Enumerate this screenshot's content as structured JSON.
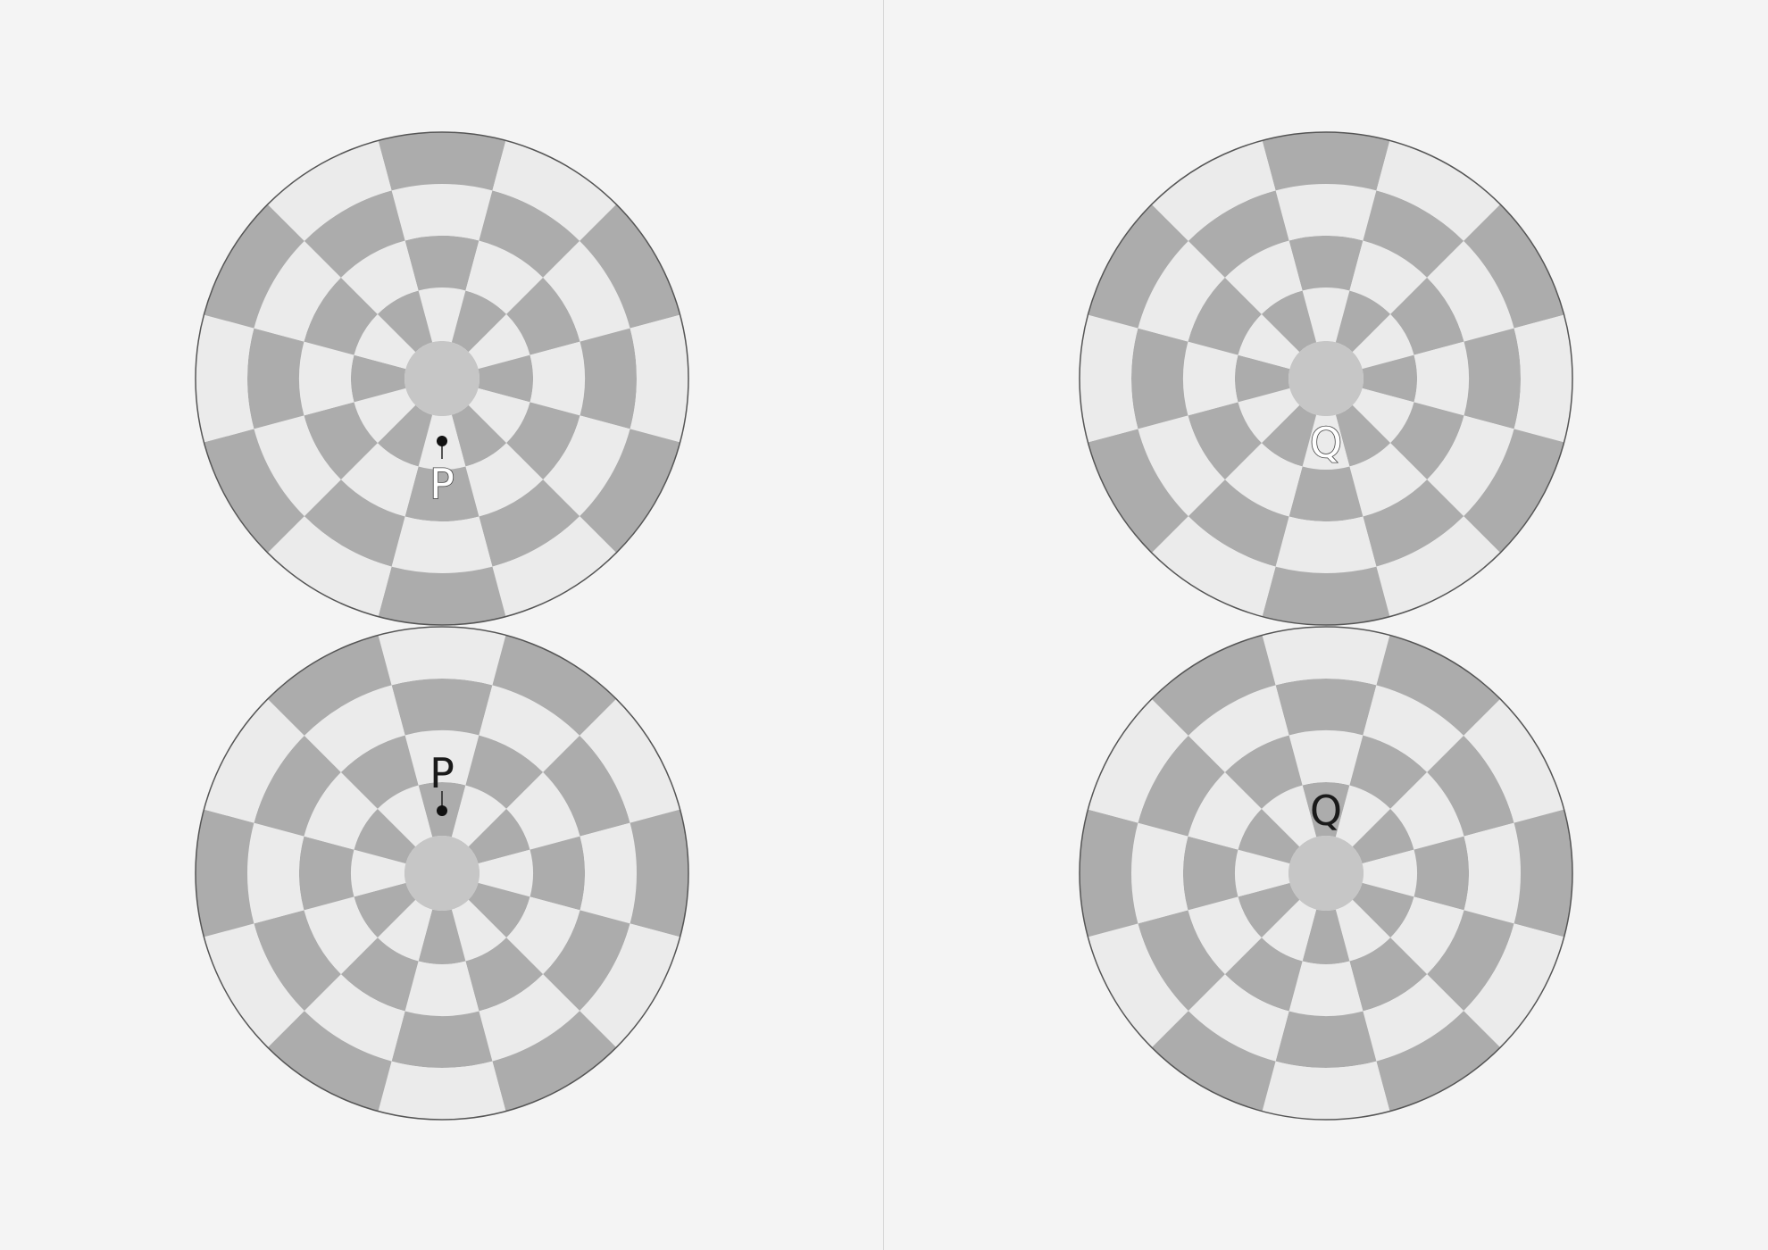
{
  "colors": {
    "background": "#f4f4f4",
    "dark_segment": "#acacac",
    "light_segment": "#ebebeb",
    "hub": "#c6c6c6",
    "outline": "#555555",
    "divider": "#d6d6d6"
  },
  "panels": [
    {
      "name": "left",
      "discs": [
        {
          "position": "top",
          "label": "P",
          "label_style": "white-outlined",
          "marker": "dot-with-stem"
        },
        {
          "position": "bottom",
          "label": "P",
          "label_style": "black",
          "marker": "dot-with-stem"
        }
      ]
    },
    {
      "name": "right",
      "discs": [
        {
          "position": "top",
          "label": "Q",
          "label_style": "white-outlined",
          "marker": "none"
        },
        {
          "position": "bottom",
          "label": "Q",
          "label_style": "black",
          "marker": "none"
        }
      ]
    }
  ],
  "disc_pattern": {
    "rings": 5,
    "sectors": 12,
    "top_disc_outer_ring_tone": "dark-at-12-oclock",
    "bottom_disc_outer_ring_tone": "light-at-12-oclock"
  }
}
